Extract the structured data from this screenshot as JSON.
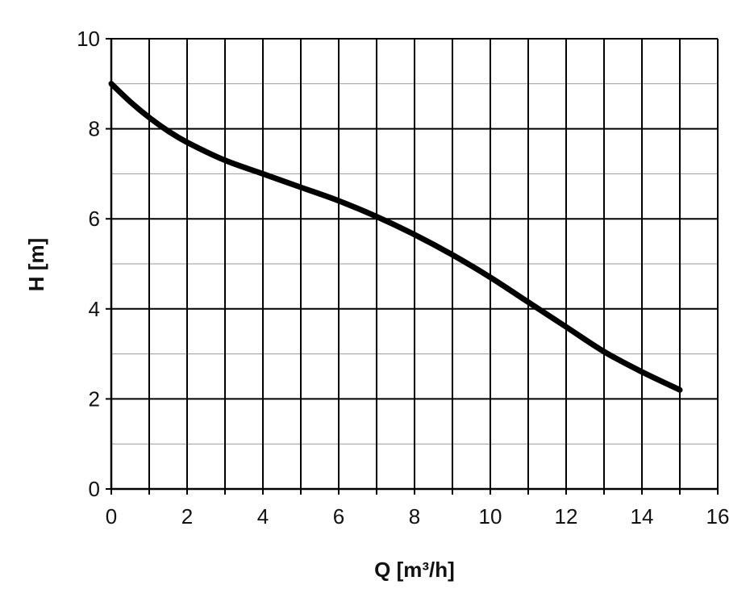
{
  "chart_data": {
    "type": "line",
    "title": "",
    "xlabel": "Q [m³/h]",
    "ylabel": "H [m]",
    "xlim": [
      0,
      16
    ],
    "ylim": [
      0,
      10
    ],
    "x_ticks": [
      0,
      2,
      4,
      6,
      8,
      10,
      12,
      14,
      16
    ],
    "y_ticks": [
      0,
      2,
      4,
      6,
      8,
      10
    ],
    "x_minor_grid_step": 1,
    "y_minor_grid_step": 1,
    "grid": true,
    "legend": "none",
    "series": [
      {
        "color": "#000000",
        "x": [
          0,
          0.5,
          1,
          1.5,
          2,
          3,
          4,
          5,
          6,
          7,
          8,
          9,
          10,
          11,
          12,
          13,
          14,
          15
        ],
        "y": [
          9.0,
          8.6,
          8.25,
          7.95,
          7.7,
          7.3,
          7.0,
          6.7,
          6.4,
          6.05,
          5.65,
          5.2,
          4.7,
          4.15,
          3.6,
          3.05,
          2.6,
          2.2
        ]
      }
    ]
  }
}
